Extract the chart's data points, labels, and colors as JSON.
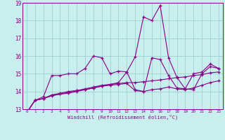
{
  "x": [
    0,
    1,
    2,
    3,
    4,
    5,
    6,
    7,
    8,
    9,
    10,
    11,
    12,
    13,
    14,
    15,
    16,
    17,
    18,
    19,
    20,
    21,
    22,
    23
  ],
  "line1": [
    12.8,
    13.5,
    13.7,
    14.9,
    14.9,
    15.0,
    15.0,
    15.3,
    16.0,
    15.9,
    15.0,
    15.15,
    15.1,
    14.1,
    14.0,
    15.9,
    15.8,
    14.9,
    14.2,
    14.15,
    15.0,
    15.1,
    15.55,
    15.3
  ],
  "line2": [
    12.8,
    13.5,
    13.6,
    13.8,
    13.85,
    13.9,
    14.0,
    14.1,
    14.2,
    14.3,
    14.35,
    14.4,
    14.45,
    14.05,
    14.0,
    14.1,
    14.15,
    14.25,
    14.15,
    14.1,
    14.2,
    14.35,
    14.5,
    14.6
  ],
  "line3": [
    12.8,
    13.5,
    13.6,
    13.75,
    13.85,
    13.95,
    14.05,
    14.15,
    14.25,
    14.35,
    14.4,
    14.45,
    14.5,
    14.5,
    14.55,
    14.6,
    14.65,
    14.72,
    14.78,
    14.82,
    14.9,
    14.95,
    15.05,
    15.1
  ],
  "line4": [
    12.8,
    13.5,
    13.6,
    13.8,
    13.9,
    14.0,
    14.05,
    14.1,
    14.2,
    14.3,
    14.4,
    14.5,
    15.1,
    15.95,
    18.2,
    18.0,
    18.85,
    15.9,
    14.8,
    14.15,
    14.1,
    15.0,
    15.4,
    15.3
  ],
  "line_color": "#880088",
  "bg_color": "#c8eeee",
  "grid_color": "#a0d0d0",
  "xlabel": "Windchill (Refroidissement éolien,°C)",
  "ylim": [
    13,
    19
  ],
  "xlim": [
    -0.5,
    23.5
  ]
}
